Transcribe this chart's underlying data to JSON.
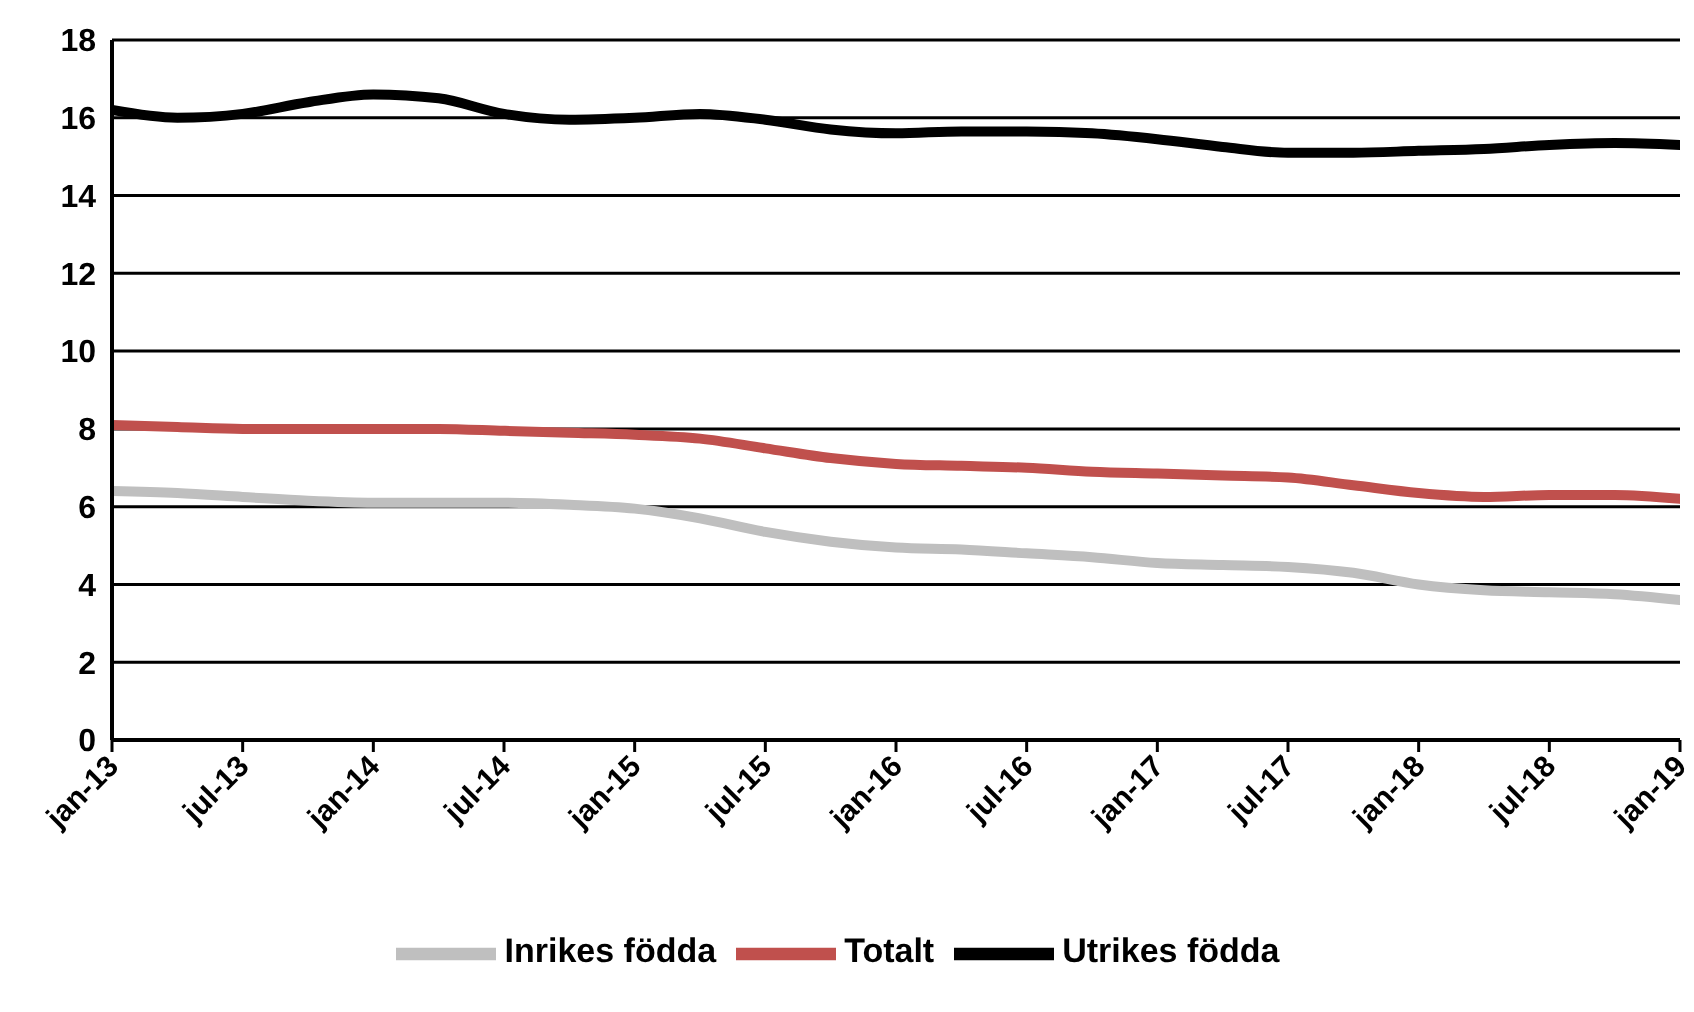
{
  "chart_data": {
    "type": "line",
    "x": [
      "2013-01",
      "2013-04",
      "2013-07",
      "2013-10",
      "2014-01",
      "2014-04",
      "2014-07",
      "2014-10",
      "2015-01",
      "2015-04",
      "2015-07",
      "2015-10",
      "2016-01",
      "2016-04",
      "2016-07",
      "2016-10",
      "2017-01",
      "2017-04",
      "2017-07",
      "2017-10",
      "2018-01",
      "2018-04",
      "2018-07",
      "2018-10",
      "2019-01"
    ],
    "series": [
      {
        "name": "Totalt",
        "color": "#c0504d",
        "values": [
          8.1,
          8.05,
          8.0,
          8.0,
          8.0,
          8.0,
          7.95,
          7.9,
          7.85,
          7.75,
          7.5,
          7.25,
          7.1,
          7.05,
          7.0,
          6.9,
          6.85,
          6.8,
          6.75,
          6.55,
          6.35,
          6.25,
          6.3,
          6.3,
          6.2
        ]
      },
      {
        "name": "Utrikes födda",
        "color": "#000000",
        "values": [
          16.2,
          16.0,
          16.1,
          16.4,
          16.6,
          16.5,
          16.1,
          15.95,
          16.0,
          16.1,
          15.95,
          15.7,
          15.6,
          15.65,
          15.65,
          15.6,
          15.45,
          15.25,
          15.1,
          15.1,
          15.15,
          15.2,
          15.3,
          15.35,
          15.3
        ]
      },
      {
        "name": "Inrikes födda",
        "color": "#bfbfbf",
        "values": [
          6.4,
          6.35,
          6.25,
          6.15,
          6.1,
          6.1,
          6.1,
          6.05,
          5.95,
          5.7,
          5.35,
          5.1,
          4.95,
          4.9,
          4.8,
          4.7,
          4.55,
          4.5,
          4.45,
          4.3,
          4.0,
          3.85,
          3.8,
          3.75,
          3.6
        ]
      }
    ],
    "xlim": [
      "2013-01",
      "2019-01"
    ],
    "xticks": [
      {
        "value": "2013-01",
        "label": "jan-13"
      },
      {
        "value": "2013-07",
        "label": "jul-13"
      },
      {
        "value": "2014-01",
        "label": "jan-14"
      },
      {
        "value": "2014-07",
        "label": "jul-14"
      },
      {
        "value": "2015-01",
        "label": "jan-15"
      },
      {
        "value": "2015-07",
        "label": "jul-15"
      },
      {
        "value": "2016-01",
        "label": "jan-16"
      },
      {
        "value": "2016-07",
        "label": "jul-16"
      },
      {
        "value": "2017-01",
        "label": "jan-17"
      },
      {
        "value": "2017-07",
        "label": "jul-17"
      },
      {
        "value": "2018-01",
        "label": "jan-18"
      },
      {
        "value": "2018-07",
        "label": "jul-18"
      },
      {
        "value": "2019-01",
        "label": "jan-19"
      }
    ],
    "ylim": [
      0,
      18
    ],
    "yticks": [
      0,
      2,
      4,
      6,
      8,
      10,
      12,
      14,
      16,
      18
    ],
    "grid": "y",
    "legend": "bottom",
    "marker": "none",
    "line_style": "solid"
  }
}
